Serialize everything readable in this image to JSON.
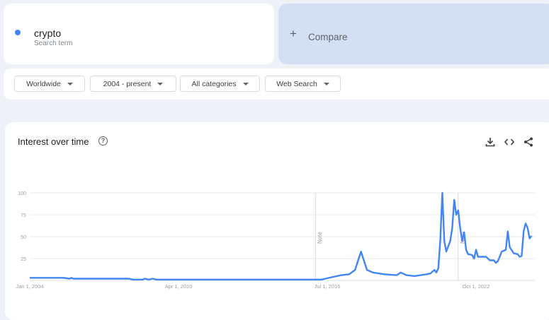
{
  "search": {
    "term": "crypto",
    "subtitle": "Search term",
    "color": "#4285f4"
  },
  "compare": {
    "icon": "plus-icon",
    "label": "Compare"
  },
  "filters": [
    {
      "label": "Worldwide"
    },
    {
      "label": "2004 - present"
    },
    {
      "label": "All categories"
    },
    {
      "label": "Web Search"
    }
  ],
  "panel": {
    "title": "Interest over time",
    "help_icon": "?",
    "icons": [
      "download-icon",
      "embed-icon",
      "share-icon"
    ]
  },
  "chart_data": {
    "type": "line",
    "title": "",
    "xlabel": "",
    "ylabel": "",
    "ylim": [
      0,
      100
    ],
    "yticks": [
      "100",
      "75",
      "50",
      "25"
    ],
    "xticks": [
      {
        "label": "Jan 1, 2004",
        "date": "2004-01"
      },
      {
        "label": "Apr 1, 2010",
        "date": "2010-04"
      },
      {
        "label": "Jul 1, 2016",
        "date": "2016-07"
      },
      {
        "label": "Oct 1, 2022",
        "date": "2022-10"
      }
    ],
    "notes": [
      {
        "label": "Note",
        "date": "2016-01"
      },
      {
        "label": "Note",
        "date": "2022-01"
      }
    ],
    "grid": true,
    "color": "#4285f4",
    "series": [
      {
        "points": [
          [
            "2004-01",
            3
          ],
          [
            "2005-06",
            3
          ],
          [
            "2005-09",
            2
          ],
          [
            "2005-10",
            3
          ],
          [
            "2005-11",
            2
          ],
          [
            "2008-03",
            2
          ],
          [
            "2008-05",
            1
          ],
          [
            "2008-10",
            1
          ],
          [
            "2008-11",
            2
          ],
          [
            "2009-01",
            1
          ],
          [
            "2009-03",
            2
          ],
          [
            "2009-05",
            1
          ],
          [
            "2016-04",
            1
          ],
          [
            "2016-06",
            2
          ],
          [
            "2016-10",
            4
          ],
          [
            "2017-02",
            6
          ],
          [
            "2017-06",
            7
          ],
          [
            "2017-09",
            12
          ],
          [
            "2017-12",
            33
          ],
          [
            "2018-03",
            12
          ],
          [
            "2018-06",
            9
          ],
          [
            "2018-12",
            7
          ],
          [
            "2019-06",
            6
          ],
          [
            "2019-08",
            9
          ],
          [
            "2019-11",
            6
          ],
          [
            "2020-03",
            5
          ],
          [
            "2020-06",
            6
          ],
          [
            "2020-09",
            7
          ],
          [
            "2020-11",
            8
          ],
          [
            "2021-01",
            12
          ],
          [
            "2021-02",
            9
          ],
          [
            "2021-03",
            14
          ],
          [
            "2021-04",
            47
          ],
          [
            "2021-05",
            100
          ],
          [
            "2021-06",
            45
          ],
          [
            "2021-07",
            33
          ],
          [
            "2021-09",
            45
          ],
          [
            "2021-10",
            60
          ],
          [
            "2021-11",
            92
          ],
          [
            "2021-12",
            75
          ],
          [
            "2022-01",
            80
          ],
          [
            "2022-02",
            60
          ],
          [
            "2022-03",
            45
          ],
          [
            "2022-04",
            55
          ],
          [
            "2022-05",
            35
          ],
          [
            "2022-06",
            30
          ],
          [
            "2022-08",
            29
          ],
          [
            "2022-09",
            25
          ],
          [
            "2022-10",
            35
          ],
          [
            "2022-11",
            27
          ],
          [
            "2023-01",
            27
          ],
          [
            "2023-03",
            27
          ],
          [
            "2023-05",
            23
          ],
          [
            "2023-07",
            23
          ],
          [
            "2023-08",
            20
          ],
          [
            "2023-09",
            22
          ],
          [
            "2023-11",
            33
          ],
          [
            "2024-01",
            35
          ],
          [
            "2024-02",
            56
          ],
          [
            "2024-03",
            38
          ],
          [
            "2024-05",
            31
          ],
          [
            "2024-07",
            30
          ],
          [
            "2024-08",
            27
          ],
          [
            "2024-09",
            28
          ],
          [
            "2024-10",
            56
          ],
          [
            "2024-11",
            65
          ],
          [
            "2024-12",
            60
          ],
          [
            "2025-01",
            48
          ],
          [
            "2025-02",
            51
          ]
        ]
      }
    ]
  }
}
